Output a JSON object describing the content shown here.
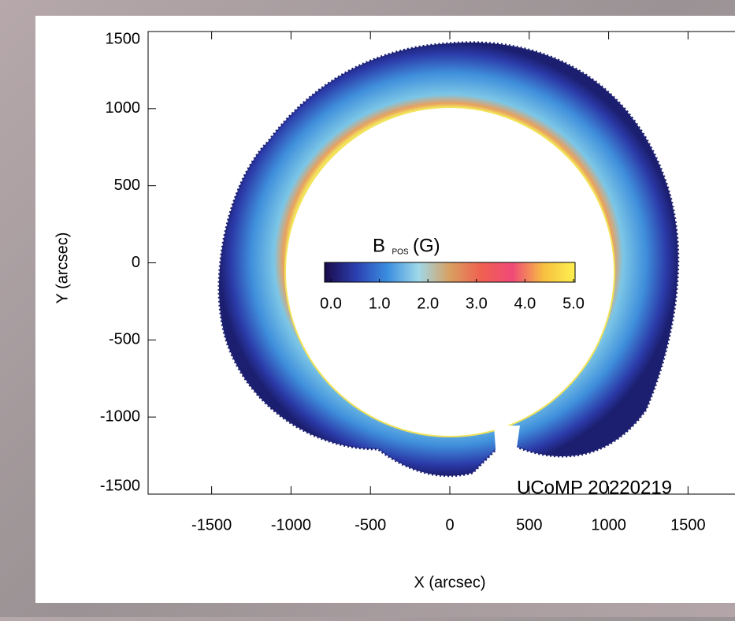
{
  "chart_data": {
    "type": "image",
    "xlabel": "X (arcsec)",
    "ylabel": "Y (arcsec)",
    "xlim": [
      -1900,
      1900
    ],
    "ylim": [
      -1500,
      1500
    ],
    "xticks": [
      -1500,
      -1000,
      -500,
      0,
      500,
      1000,
      1500
    ],
    "yticks": [
      -1500,
      -1000,
      -500,
      0,
      500,
      1000,
      1500
    ],
    "annotation": "UCoMP 20220219",
    "colorbar": {
      "label": "B",
      "label_subscript": "POS",
      "label_unit": "(G)",
      "clim": [
        0,
        5
      ],
      "ticks": [
        {
          "value": 0,
          "label": "0.0"
        },
        {
          "value": 1,
          "label": "1.0"
        },
        {
          "value": 2,
          "label": "2.0"
        },
        {
          "value": 3,
          "label": "3.0"
        },
        {
          "value": 4,
          "label": "4.0"
        },
        {
          "value": 5,
          "label": "5.0"
        }
      ],
      "colors": [
        "#1a0b4a",
        "#2c3fb0",
        "#3a8ee0",
        "#9fd8e8",
        "#d9a060",
        "#f06050",
        "#f04a78",
        "#f7c040",
        "#fdf050"
      ]
    }
  }
}
